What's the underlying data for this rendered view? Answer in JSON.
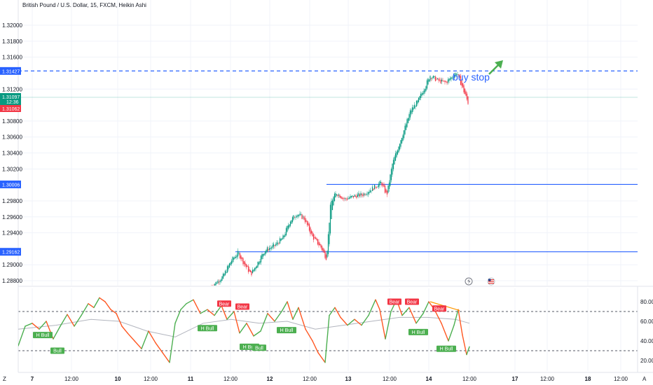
{
  "header": {
    "title": "British Pound / U.S. Dollar, 15, FXCM, Heikin Ashi"
  },
  "chart_data": [
    {
      "type": "candlestick",
      "title": "British Pound / U.S. Dollar, 15, FXCM, Heikin Ashi",
      "y_ticks": [
        "1.32000",
        "1.31800",
        "1.31600",
        "1.31200",
        "1.30800",
        "1.30600",
        "1.30400",
        "1.30200",
        "1.29800",
        "1.29600",
        "1.29400",
        "1.29000",
        "1.28800"
      ],
      "ylim": [
        1.2875,
        1.3245
      ],
      "x_ticks": [
        "7",
        "12:00",
        "10",
        "12:00",
        "11",
        "12:00",
        "12",
        "12:00",
        "13",
        "12:00",
        "14",
        "12:00",
        "17",
        "12:00",
        "18",
        "12:00"
      ],
      "price_path": [
        {
          "x": 302,
          "y": 1.2873
        },
        {
          "x": 318,
          "y": 1.2885
        },
        {
          "x": 330,
          "y": 1.2905
        },
        {
          "x": 340,
          "y": 1.2915
        },
        {
          "x": 348,
          "y": 1.2902
        },
        {
          "x": 358,
          "y": 1.2888
        },
        {
          "x": 368,
          "y": 1.2903
        },
        {
          "x": 378,
          "y": 1.2918
        },
        {
          "x": 392,
          "y": 1.2924
        },
        {
          "x": 404,
          "y": 1.2934
        },
        {
          "x": 414,
          "y": 1.2955
        },
        {
          "x": 424,
          "y": 1.2964
        },
        {
          "x": 434,
          "y": 1.2958
        },
        {
          "x": 446,
          "y": 1.2935
        },
        {
          "x": 458,
          "y": 1.2922
        },
        {
          "x": 466,
          "y": 1.2908
        },
        {
          "x": 472,
          "y": 1.2978
        },
        {
          "x": 480,
          "y": 1.299
        },
        {
          "x": 492,
          "y": 1.2982
        },
        {
          "x": 506,
          "y": 1.2986
        },
        {
          "x": 518,
          "y": 1.2988
        },
        {
          "x": 532,
          "y": 1.2996
        },
        {
          "x": 544,
          "y": 1.3003
        },
        {
          "x": 552,
          "y": 1.2987
        },
        {
          "x": 560,
          "y": 1.3026
        },
        {
          "x": 570,
          "y": 1.3052
        },
        {
          "x": 578,
          "y": 1.3072
        },
        {
          "x": 586,
          "y": 1.3093
        },
        {
          "x": 596,
          "y": 1.3104
        },
        {
          "x": 606,
          "y": 1.3122
        },
        {
          "x": 614,
          "y": 1.3137
        },
        {
          "x": 624,
          "y": 1.3131
        },
        {
          "x": 636,
          "y": 1.3128
        },
        {
          "x": 646,
          "y": 1.3136
        },
        {
          "x": 652,
          "y": 1.3141
        },
        {
          "x": 660,
          "y": 1.3122
        },
        {
          "x": 668,
          "y": 1.3103
        }
      ],
      "horizontal_levels": [
        {
          "label": "1.31427",
          "value": 1.31427,
          "style": "dashed",
          "color": "#2962ff",
          "x_start": 0
        },
        {
          "label": "1.30006",
          "value": 1.30006,
          "style": "solid",
          "color": "#2962ff",
          "x_start": 466
        },
        {
          "label": "1.29162",
          "value": 1.29162,
          "style": "solid",
          "color": "#2962ff",
          "x_start": 336
        }
      ],
      "current_price": {
        "label": "1.31097",
        "countdown": "12:36",
        "value": 1.31097,
        "color": "#089981"
      },
      "previous_close": {
        "label": "1.31062",
        "value": 1.31062,
        "color": "#f23645"
      },
      "annotation": {
        "text": "buy stop",
        "arrow_color": "#4caf50"
      }
    },
    {
      "type": "line",
      "title": "",
      "y_ticks": [
        "80.00",
        "60.00",
        "40.00",
        "20.00"
      ],
      "ylim": [
        15,
        88
      ],
      "levels": [
        70,
        30
      ],
      "oscillator_path": [
        {
          "x": 26,
          "y": 35
        },
        {
          "x": 36,
          "y": 55
        },
        {
          "x": 46,
          "y": 58
        },
        {
          "x": 56,
          "y": 52
        },
        {
          "x": 66,
          "y": 60
        },
        {
          "x": 76,
          "y": 42
        },
        {
          "x": 86,
          "y": 55
        },
        {
          "x": 96,
          "y": 67
        },
        {
          "x": 106,
          "y": 55
        },
        {
          "x": 116,
          "y": 66
        },
        {
          "x": 126,
          "y": 78
        },
        {
          "x": 134,
          "y": 74
        },
        {
          "x": 142,
          "y": 84
        },
        {
          "x": 150,
          "y": 80
        },
        {
          "x": 158,
          "y": 72
        },
        {
          "x": 166,
          "y": 68
        },
        {
          "x": 174,
          "y": 55
        },
        {
          "x": 182,
          "y": 48
        },
        {
          "x": 192,
          "y": 40
        },
        {
          "x": 202,
          "y": 32
        },
        {
          "x": 212,
          "y": 50
        },
        {
          "x": 222,
          "y": 38
        },
        {
          "x": 232,
          "y": 28
        },
        {
          "x": 242,
          "y": 18
        },
        {
          "x": 250,
          "y": 58
        },
        {
          "x": 258,
          "y": 72
        },
        {
          "x": 266,
          "y": 78
        },
        {
          "x": 276,
          "y": 82
        },
        {
          "x": 286,
          "y": 68
        },
        {
          "x": 296,
          "y": 72
        },
        {
          "x": 306,
          "y": 66
        },
        {
          "x": 316,
          "y": 76
        },
        {
          "x": 324,
          "y": 62
        },
        {
          "x": 334,
          "y": 70
        },
        {
          "x": 342,
          "y": 48
        },
        {
          "x": 352,
          "y": 58
        },
        {
          "x": 362,
          "y": 45
        },
        {
          "x": 372,
          "y": 50
        },
        {
          "x": 382,
          "y": 68
        },
        {
          "x": 392,
          "y": 60
        },
        {
          "x": 402,
          "y": 70
        },
        {
          "x": 410,
          "y": 80
        },
        {
          "x": 418,
          "y": 62
        },
        {
          "x": 426,
          "y": 74
        },
        {
          "x": 436,
          "y": 52
        },
        {
          "x": 446,
          "y": 40
        },
        {
          "x": 454,
          "y": 28
        },
        {
          "x": 464,
          "y": 18
        },
        {
          "x": 470,
          "y": 66
        },
        {
          "x": 478,
          "y": 74
        },
        {
          "x": 486,
          "y": 64
        },
        {
          "x": 496,
          "y": 56
        },
        {
          "x": 506,
          "y": 62
        },
        {
          "x": 516,
          "y": 56
        },
        {
          "x": 526,
          "y": 66
        },
        {
          "x": 536,
          "y": 82
        },
        {
          "x": 542,
          "y": 72
        },
        {
          "x": 550,
          "y": 42
        },
        {
          "x": 558,
          "y": 70
        },
        {
          "x": 566,
          "y": 82
        },
        {
          "x": 574,
          "y": 66
        },
        {
          "x": 584,
          "y": 74
        },
        {
          "x": 594,
          "y": 58
        },
        {
          "x": 604,
          "y": 68
        },
        {
          "x": 612,
          "y": 80
        },
        {
          "x": 620,
          "y": 72
        },
        {
          "x": 630,
          "y": 58
        },
        {
          "x": 640,
          "y": 40
        },
        {
          "x": 648,
          "y": 56
        },
        {
          "x": 654,
          "y": 72
        },
        {
          "x": 660,
          "y": 46
        },
        {
          "x": 666,
          "y": 26
        },
        {
          "x": 670,
          "y": 34
        }
      ],
      "signal_path": [
        {
          "x": 26,
          "y": 52
        },
        {
          "x": 80,
          "y": 56
        },
        {
          "x": 130,
          "y": 62
        },
        {
          "x": 170,
          "y": 60
        },
        {
          "x": 210,
          "y": 50
        },
        {
          "x": 250,
          "y": 44
        },
        {
          "x": 290,
          "y": 58
        },
        {
          "x": 330,
          "y": 62
        },
        {
          "x": 370,
          "y": 58
        },
        {
          "x": 410,
          "y": 60
        },
        {
          "x": 450,
          "y": 52
        },
        {
          "x": 490,
          "y": 56
        },
        {
          "x": 530,
          "y": 60
        },
        {
          "x": 570,
          "y": 64
        },
        {
          "x": 610,
          "y": 64
        },
        {
          "x": 650,
          "y": 62
        },
        {
          "x": 670,
          "y": 58
        }
      ],
      "labels": [
        {
          "text": "H Bull",
          "x": 61,
          "value": 46,
          "kind": "bull"
        },
        {
          "text": "Bull",
          "x": 82,
          "value": 30,
          "kind": "bull"
        },
        {
          "text": "H Bull",
          "x": 296,
          "value": 53,
          "kind": "bull"
        },
        {
          "text": "Bear",
          "x": 320,
          "value": 78,
          "kind": "bear"
        },
        {
          "text": "Bear",
          "x": 346,
          "value": 75,
          "kind": "bear"
        },
        {
          "text": "H Bull",
          "x": 356,
          "value": 34,
          "kind": "bull"
        },
        {
          "text": "Bull",
          "x": 370,
          "value": 33,
          "kind": "bull"
        },
        {
          "text": "H Bull",
          "x": 409,
          "value": 51,
          "kind": "bull"
        },
        {
          "text": "Bear",
          "x": 563,
          "value": 80,
          "kind": "bear"
        },
        {
          "text": "Bear",
          "x": 588,
          "value": 80,
          "kind": "bear"
        },
        {
          "text": "H Bull",
          "x": 597,
          "value": 49,
          "kind": "bull"
        },
        {
          "text": "Bear",
          "x": 627,
          "value": 73,
          "kind": "bear"
        },
        {
          "text": "H Bull",
          "x": 637,
          "value": 32,
          "kind": "bull"
        }
      ],
      "divergence_line": {
        "x1": 614,
        "v1": 80,
        "x2": 656,
        "v2": 71,
        "color": "#ff9800"
      }
    }
  ],
  "colors": {
    "up": "#089981",
    "down": "#f23645",
    "osc_up": "#4caf50",
    "osc_down": "#ff5722",
    "grid": "#f0f3fa",
    "level": "#2962ff",
    "text": "#131722"
  },
  "footer": {
    "tz_icon": "Z",
    "auto_icon": "A"
  },
  "event_icons": [
    "lightning-icon",
    "us-flag-icon"
  ]
}
